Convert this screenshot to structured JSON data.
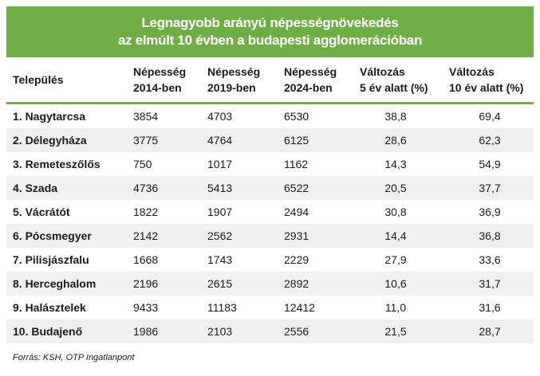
{
  "title": {
    "line1": "Legnagyobb arányú népességnövekedés",
    "line2": "az elmúlt 10 évben a budapesti agglomerációban"
  },
  "colors": {
    "accent": "#6fad45",
    "stripe": "#f0f0f0"
  },
  "table": {
    "headers": [
      {
        "line1": "Település",
        "line2": ""
      },
      {
        "line1": "Népesség",
        "line2": "2014-ben"
      },
      {
        "line1": "Népesség",
        "line2": "2019-ben"
      },
      {
        "line1": "Népesség",
        "line2": "2024-ben"
      },
      {
        "line1": "Változás",
        "line2": "5 év alatt (%)"
      },
      {
        "line1": "Változás",
        "line2": "10 év alatt (%)"
      }
    ],
    "rows": [
      {
        "name": "1. Nagytarcsa",
        "p2014": "3854",
        "p2019": "4703",
        "p2024": "6530",
        "chg5": "38,8",
        "chg10": "69,4"
      },
      {
        "name": "2. Délegyháza",
        "p2014": "3775",
        "p2019": "4764",
        "p2024": "6125",
        "chg5": "28,6",
        "chg10": "62,3"
      },
      {
        "name": "3. Remeteszőlős",
        "p2014": "750",
        "p2019": "1017",
        "p2024": "1162",
        "chg5": "14,3",
        "chg10": "54,9"
      },
      {
        "name": "4. Szada",
        "p2014": "4736",
        "p2019": "5413",
        "p2024": "6522",
        "chg5": "20,5",
        "chg10": "37,7"
      },
      {
        "name": "5. Vácrátót",
        "p2014": "1822",
        "p2019": "1907",
        "p2024": "2494",
        "chg5": "30,8",
        "chg10": "36,9"
      },
      {
        "name": "6. Pócsmegyer",
        "p2014": "2142",
        "p2019": "2562",
        "p2024": "2931",
        "chg5": "14,4",
        "chg10": "36,8"
      },
      {
        "name": "7. Pilisjászfalu",
        "p2014": "1668",
        "p2019": "1743",
        "p2024": "2229",
        "chg5": "27,9",
        "chg10": "33,6"
      },
      {
        "name": "8. Herceghalom",
        "p2014": "2196",
        "p2019": "2615",
        "p2024": "2892",
        "chg5": "10,6",
        "chg10": "31,7"
      },
      {
        "name": "9. Halásztelek",
        "p2014": "9433",
        "p2019": "11183",
        "p2024": "12412",
        "chg5": "11,0",
        "chg10": "31,6"
      },
      {
        "name": "10. Budajenő",
        "p2014": "1986",
        "p2019": "2103",
        "p2024": "2556",
        "chg5": "21,5",
        "chg10": "28,7"
      }
    ]
  },
  "footer": {
    "source": "Forrás: KSH, OTP Ingatlanpont"
  }
}
